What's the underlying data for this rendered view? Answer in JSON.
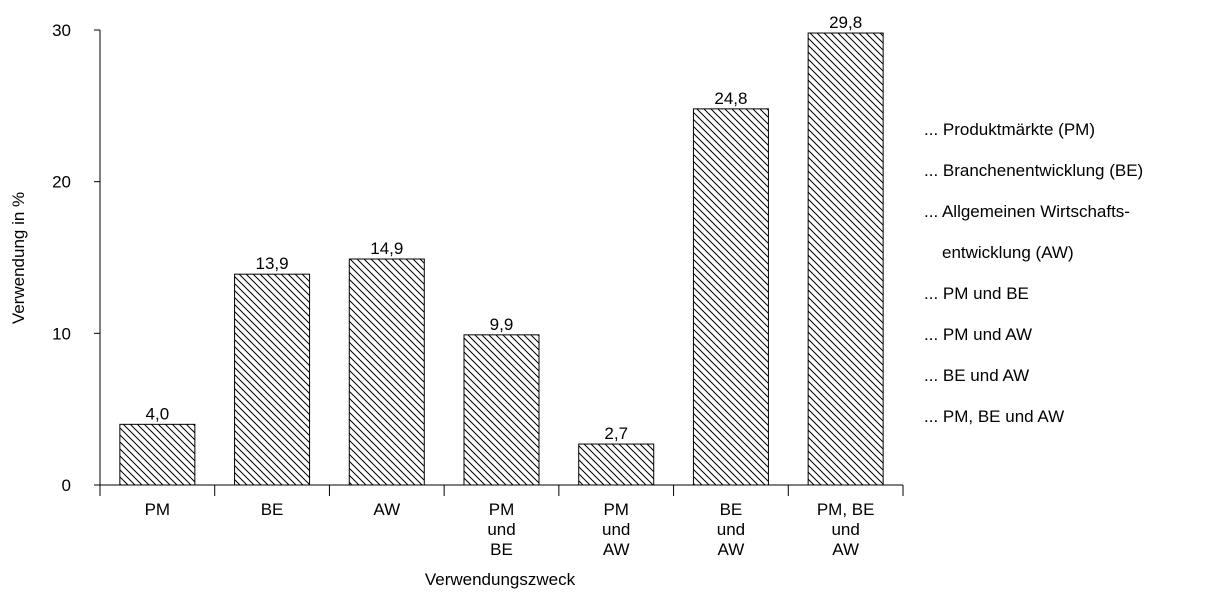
{
  "chart_data": {
    "type": "bar",
    "xlabel": "Verwendungszweck",
    "ylabel": "Verwendung in %",
    "ylim": [
      0,
      30
    ],
    "yticks": [
      0,
      10,
      20,
      30
    ],
    "grid": false,
    "categories": [
      [
        "PM"
      ],
      [
        "BE"
      ],
      [
        "AW"
      ],
      [
        "PM",
        "und",
        "BE"
      ],
      [
        "PM",
        "und",
        "AW"
      ],
      [
        "BE",
        "und",
        "AW"
      ],
      [
        "PM, BE",
        "und",
        "AW"
      ]
    ],
    "values": [
      4.0,
      13.9,
      14.9,
      9.9,
      2.7,
      24.8,
      29.8
    ],
    "value_labels": [
      "4,0",
      "13,9",
      "14,9",
      "9,9",
      "2,7",
      "24,8",
      "29,8"
    ],
    "bar_style": "diagonal-hatch",
    "bar_color": "#000000",
    "legend_position": "right"
  },
  "legend": {
    "items": [
      "... Produktmärkte (PM)",
      "... Branchenentwicklung (BE)",
      "... Allgemeinen Wirtschafts-",
      "entwicklung (AW)",
      "... PM und BE",
      "... PM und AW",
      "... BE und AW",
      "... PM, BE und AW"
    ]
  }
}
